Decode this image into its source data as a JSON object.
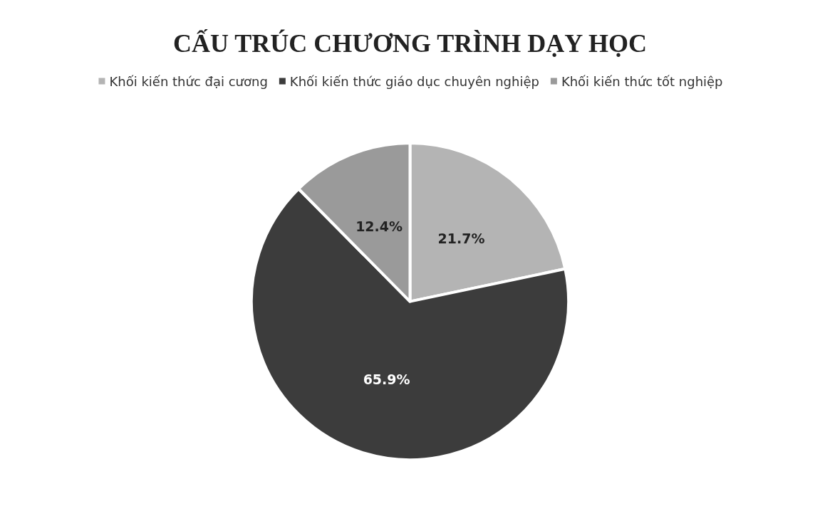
{
  "chart_data": {
    "type": "pie",
    "title": "CẤU TRÚC CHƯƠNG TRÌNH DẠY HỌC",
    "categories": [
      "Khối kiến thức đại cương",
      "Khối kiến thức giáo dục chuyên nghiệp",
      "Khối kiến thức tốt nghiệp"
    ],
    "values": [
      21.7,
      65.9,
      12.4
    ],
    "colors": [
      "#b4b4b4",
      "#3c3c3c",
      "#9a9a9a"
    ],
    "value_labels": [
      "21.7%",
      "65.9%",
      "12.4%"
    ],
    "legend": "top"
  }
}
